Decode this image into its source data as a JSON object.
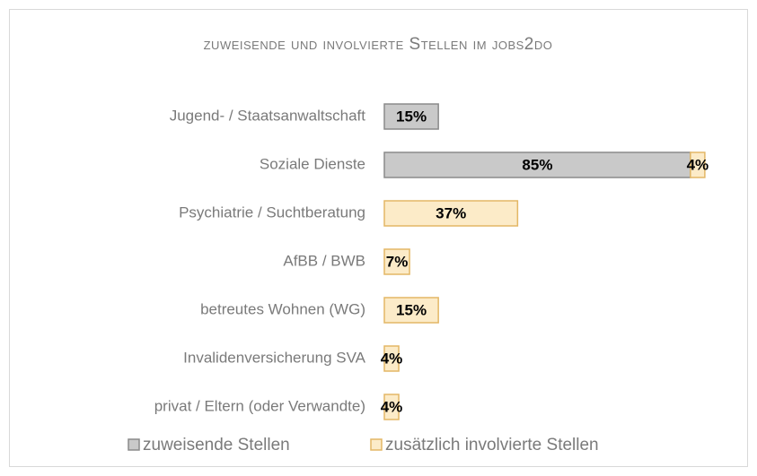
{
  "chart_data": {
    "type": "stacked-barh",
    "title": "zuweisende und involvierte Stellen im jobs2do",
    "categories": [
      "Jugend- / Staatsanwaltschaft",
      "Soziale Dienste",
      "Psychiatrie / Suchtberatung",
      "AfBB / BWB",
      "betreutes Wohnen (WG)",
      "Invalidenversicherung SVA",
      "privat / Eltern (oder Verwandte)"
    ],
    "series": [
      {
        "name": "zuweisende Stellen",
        "color": "#c9c9c9",
        "stroke": "#8a8a8a",
        "values": [
          15,
          85,
          null,
          null,
          null,
          null,
          null
        ],
        "value_labels": [
          "15%",
          "85%",
          null,
          null,
          null,
          null,
          null
        ]
      },
      {
        "name": "zusätzlich involvierte Stellen",
        "color": "#fcebc8",
        "stroke": "#e3b766",
        "values": [
          null,
          4,
          37,
          7,
          15,
          4,
          4
        ],
        "value_labels": [
          null,
          "4%",
          "37%",
          "7%",
          "15%",
          "4%",
          "4%"
        ]
      }
    ],
    "xlim": [
      0,
      100
    ],
    "legend": "bottom"
  }
}
